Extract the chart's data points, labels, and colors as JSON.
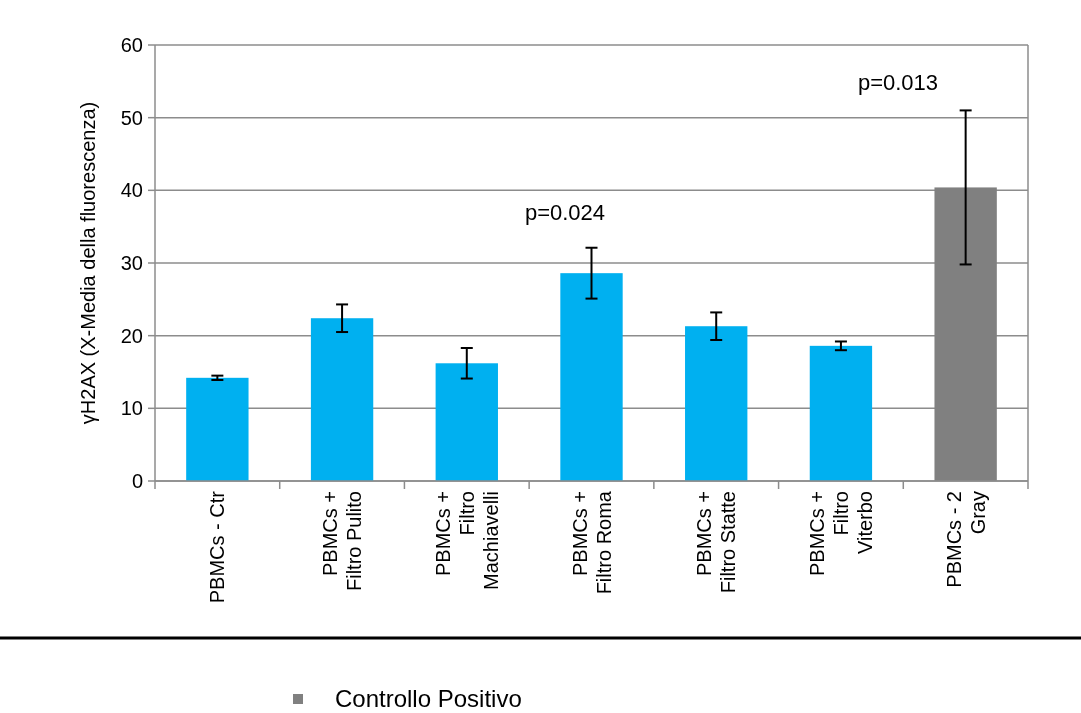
{
  "chart_data": {
    "type": "bar",
    "ylabel": "γH2AX (X-Media della fluorescenza)",
    "categories": [
      "PBMCs - Ctr",
      "PBMCs + Filtro Pulito",
      "PBMCs + Filtro Machiavelli",
      "PBMCs + Filtro Roma",
      "PBMCs + Filtro Statte",
      "PBMCs + Filtro Viterbo",
      "PBMCs - 2 Gray"
    ],
    "series": [
      {
        "color": "#00b0f0",
        "values": [
          14.2,
          22.4,
          16.2,
          28.6,
          21.3,
          18.6,
          null
        ],
        "errors": [
          0.3,
          1.9,
          2.1,
          3.5,
          1.9,
          0.6,
          null
        ]
      },
      {
        "name": "Controllo Positivo",
        "color": "#808080",
        "values": [
          null,
          null,
          null,
          null,
          null,
          null,
          40.4
        ],
        "errors": [
          null,
          null,
          null,
          null,
          null,
          null,
          10.6
        ]
      }
    ],
    "ylim": [
      0,
      60
    ],
    "yticks": [
      0,
      10,
      20,
      30,
      40,
      50,
      60
    ],
    "grid": "y",
    "legend": "bottom",
    "annotations": [
      "p=0.024",
      "p=0.013"
    ]
  }
}
